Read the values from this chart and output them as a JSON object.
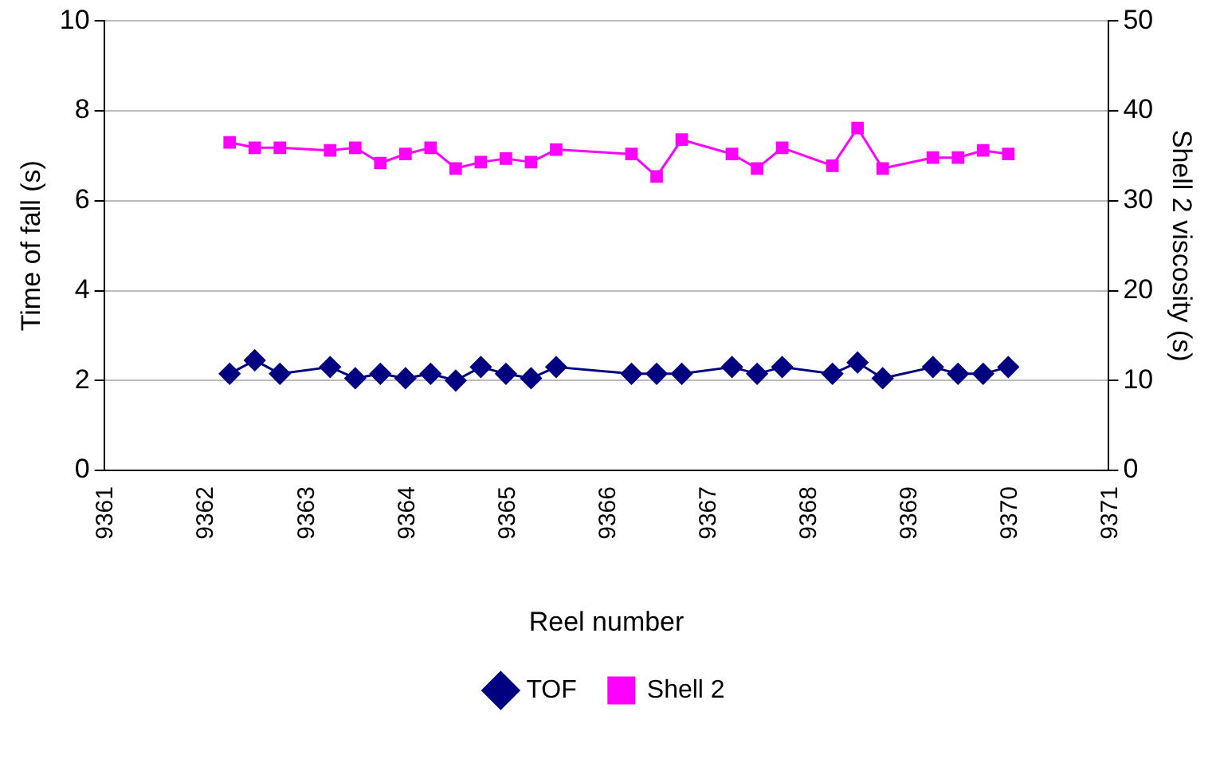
{
  "chart_data": {
    "type": "line",
    "xlabel": "Reel number",
    "ylabel": "Time of fall (s)",
    "y2label": "Shell 2 viscosity (s)",
    "x": [
      9362.25,
      9362.5,
      9362.75,
      9363.25,
      9363.5,
      9363.75,
      9364,
      9364.25,
      9364.5,
      9364.75,
      9365,
      9365.25,
      9365.5,
      9366.25,
      9366.5,
      9366.75,
      9367.25,
      9367.5,
      9367.75,
      9368.25,
      9368.5,
      9368.75,
      9369.25,
      9369.5,
      9369.75,
      9370
    ],
    "series": [
      {
        "name": "TOF",
        "color": "#000080",
        "marker": "diamond",
        "values": [
          2.15,
          2.45,
          2.15,
          2.3,
          2.05,
          2.15,
          2.05,
          2.15,
          2.0,
          2.3,
          2.15,
          2.05,
          2.3,
          2.15,
          2.15,
          2.15,
          2.3,
          2.15,
          2.3,
          2.15,
          2.4,
          2.05,
          2.3,
          2.15,
          2.15,
          2.3
        ]
      },
      {
        "name": "Shell 2",
        "color": "#ff00ff",
        "marker": "square",
        "axis": "y2",
        "values": [
          36.5,
          35.9,
          35.9,
          35.6,
          35.9,
          34.2,
          35.2,
          35.9,
          33.6,
          34.3,
          34.7,
          34.3,
          35.7,
          35.2,
          32.7,
          36.8,
          35.2,
          33.6,
          35.9,
          33.9,
          38.1,
          33.6,
          34.8,
          34.8,
          35.6,
          35.2
        ]
      }
    ],
    "xlim": [
      9361,
      9371
    ],
    "xticks": [
      9361,
      9362,
      9363,
      9364,
      9365,
      9366,
      9367,
      9368,
      9369,
      9370,
      9371
    ],
    "ylim": [
      0,
      10
    ],
    "yticks": [
      0,
      2,
      4,
      6,
      8,
      10
    ],
    "y2lim": [
      0,
      50
    ],
    "y2ticks": [
      0,
      10,
      20,
      30,
      40,
      50
    ],
    "grid": "y",
    "legend": "bottom",
    "line_style": "solid"
  }
}
